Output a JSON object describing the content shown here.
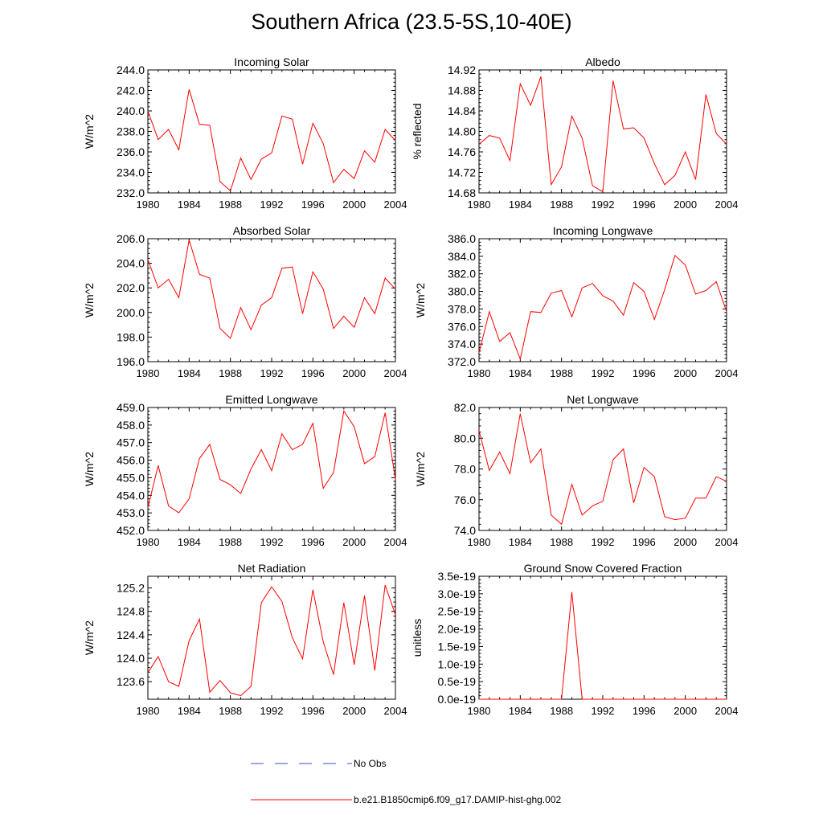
{
  "title": "Southern Africa (23.5-5S,10-40E)",
  "colors": {
    "model": "#ff0000",
    "obs": "#3a4fd0",
    "axis": "#000000"
  },
  "legend": {
    "obs_label": "No Obs",
    "model_label": "b.e21.B1850cmip6.f09_g17.DAMIP-hist-ghg.002"
  },
  "chart_data": [
    {
      "type": "line",
      "title": "Incoming Solar",
      "xlabel": "",
      "ylabel": "W/m^2",
      "x": [
        1980,
        1981,
        1982,
        1983,
        1984,
        1985,
        1986,
        1987,
        1988,
        1989,
        1990,
        1991,
        1992,
        1993,
        1994,
        1995,
        1996,
        1997,
        1998,
        1999,
        2000,
        2001,
        2002,
        2003,
        2004
      ],
      "xlim": [
        1980,
        2004
      ],
      "xticks": [
        "1980",
        "1984",
        "1988",
        "1992",
        "1996",
        "2000",
        "2004"
      ],
      "ylim": [
        232.0,
        244.0
      ],
      "yticks": [
        "232.0",
        "234.0",
        "236.0",
        "238.0",
        "240.0",
        "242.0",
        "244.0"
      ],
      "series": [
        {
          "values": [
            240.0,
            237.2,
            238.2,
            236.2,
            242.1,
            238.7,
            238.6,
            233.1,
            232.2,
            235.4,
            233.3,
            235.3,
            235.9,
            239.5,
            239.2,
            234.8,
            238.8,
            236.8,
            233.0,
            234.3,
            233.4,
            236.1,
            235.0,
            238.2,
            237.1
          ]
        }
      ]
    },
    {
      "type": "line",
      "title": "Albedo",
      "xlabel": "",
      "ylabel": "% reflected",
      "x": [
        1980,
        1981,
        1982,
        1983,
        1984,
        1985,
        1986,
        1987,
        1988,
        1989,
        1990,
        1991,
        1992,
        1993,
        1994,
        1995,
        1996,
        1997,
        1998,
        1999,
        2000,
        2001,
        2002,
        2003,
        2004
      ],
      "xlim": [
        1980,
        2004
      ],
      "xticks": [
        "1980",
        "1984",
        "1988",
        "1992",
        "1996",
        "2000",
        "2004"
      ],
      "ylim": [
        14.68,
        14.92
      ],
      "yticks": [
        "14.68",
        "14.72",
        "14.76",
        "14.80",
        "14.84",
        "14.88",
        "14.92"
      ],
      "series": [
        {
          "values": [
            14.775,
            14.792,
            14.787,
            14.743,
            14.893,
            14.851,
            14.907,
            14.696,
            14.731,
            14.83,
            14.787,
            14.694,
            14.682,
            14.899,
            14.805,
            14.807,
            14.787,
            14.737,
            14.696,
            14.714,
            14.76,
            14.706,
            14.872,
            14.796,
            14.775
          ]
        }
      ]
    },
    {
      "type": "line",
      "title": "Absorbed Solar",
      "xlabel": "",
      "ylabel": "W/m^2",
      "x": [
        1980,
        1981,
        1982,
        1983,
        1984,
        1985,
        1986,
        1987,
        1988,
        1989,
        1990,
        1991,
        1992,
        1993,
        1994,
        1995,
        1996,
        1997,
        1998,
        1999,
        2000,
        2001,
        2002,
        2003,
        2004
      ],
      "xlim": [
        1980,
        2004
      ],
      "xticks": [
        "1980",
        "1984",
        "1988",
        "1992",
        "1996",
        "2000",
        "2004"
      ],
      "ylim": [
        196.0,
        206.0
      ],
      "yticks": [
        "196.0",
        "198.0",
        "200.0",
        "202.0",
        "204.0",
        "206.0"
      ],
      "series": [
        {
          "values": [
            204.3,
            202.0,
            202.7,
            201.2,
            205.9,
            203.1,
            202.8,
            198.7,
            197.9,
            200.4,
            198.6,
            200.6,
            201.2,
            203.6,
            203.7,
            199.9,
            203.3,
            201.9,
            198.7,
            199.7,
            198.8,
            201.2,
            199.9,
            202.8,
            201.9
          ]
        }
      ]
    },
    {
      "type": "line",
      "title": "Incoming Longwave",
      "xlabel": "",
      "ylabel": "W/m^2",
      "x": [
        1980,
        1981,
        1982,
        1983,
        1984,
        1985,
        1986,
        1987,
        1988,
        1989,
        1990,
        1991,
        1992,
        1993,
        1994,
        1995,
        1996,
        1997,
        1998,
        1999,
        2000,
        2001,
        2002,
        2003,
        2004
      ],
      "xlim": [
        1980,
        2004
      ],
      "xticks": [
        "1980",
        "1984",
        "1988",
        "1992",
        "1996",
        "2000",
        "2004"
      ],
      "ylim": [
        372.0,
        386.0
      ],
      "yticks": [
        "372.0",
        "374.0",
        "376.0",
        "378.0",
        "380.0",
        "382.0",
        "384.0",
        "386.0"
      ],
      "series": [
        {
          "values": [
            373.0,
            377.7,
            374.3,
            375.3,
            372.3,
            377.7,
            377.6,
            379.8,
            380.1,
            377.1,
            380.4,
            380.9,
            379.5,
            378.9,
            377.3,
            381.0,
            380.0,
            376.8,
            380.2,
            384.1,
            383.0,
            379.7,
            380.1,
            381.1,
            377.7
          ]
        }
      ]
    },
    {
      "type": "line",
      "title": "Emitted Longwave",
      "xlabel": "",
      "ylabel": "W/m^2",
      "x": [
        1980,
        1981,
        1982,
        1983,
        1984,
        1985,
        1986,
        1987,
        1988,
        1989,
        1990,
        1991,
        1992,
        1993,
        1994,
        1995,
        1996,
        1997,
        1998,
        1999,
        2000,
        2001,
        2002,
        2003,
        2004
      ],
      "xlim": [
        1980,
        2004
      ],
      "xticks": [
        "1980",
        "1984",
        "1988",
        "1992",
        "1996",
        "2000",
        "2004"
      ],
      "ylim": [
        452.0,
        459.0
      ],
      "yticks": [
        "452.0",
        "453.0",
        "454.0",
        "455.0",
        "456.0",
        "457.0",
        "458.0",
        "459.0"
      ],
      "series": [
        {
          "values": [
            453.3,
            455.7,
            453.4,
            453.0,
            453.8,
            456.1,
            456.9,
            454.9,
            454.6,
            454.1,
            455.5,
            456.6,
            455.4,
            457.5,
            456.6,
            456.9,
            458.1,
            454.4,
            455.3,
            458.8,
            457.9,
            455.8,
            456.2,
            458.7,
            454.9
          ]
        }
      ]
    },
    {
      "type": "line",
      "title": "Net Longwave",
      "xlabel": "",
      "ylabel": "W/m^2",
      "x": [
        1980,
        1981,
        1982,
        1983,
        1984,
        1985,
        1986,
        1987,
        1988,
        1989,
        1990,
        1991,
        1992,
        1993,
        1994,
        1995,
        1996,
        1997,
        1998,
        1999,
        2000,
        2001,
        2002,
        2003,
        2004
      ],
      "xlim": [
        1980,
        2004
      ],
      "xticks": [
        "1980",
        "1984",
        "1988",
        "1992",
        "1996",
        "2000",
        "2004"
      ],
      "ylim": [
        74.0,
        82.0
      ],
      "yticks": [
        "74.0",
        "76.0",
        "78.0",
        "80.0",
        "82.0"
      ],
      "series": [
        {
          "values": [
            80.5,
            77.9,
            79.1,
            77.7,
            81.6,
            78.4,
            79.3,
            75.0,
            74.4,
            77.0,
            75.0,
            75.6,
            75.9,
            78.6,
            79.3,
            75.8,
            78.1,
            77.5,
            74.9,
            74.7,
            74.8,
            76.1,
            76.1,
            77.5,
            77.2
          ]
        }
      ]
    },
    {
      "type": "line",
      "title": "Net Radiation",
      "xlabel": "",
      "ylabel": "W/m^2",
      "x": [
        1980,
        1981,
        1982,
        1983,
        1984,
        1985,
        1986,
        1987,
        1988,
        1989,
        1990,
        1991,
        1992,
        1993,
        1994,
        1995,
        1996,
        1997,
        1998,
        1999,
        2000,
        2001,
        2002,
        2003,
        2004
      ],
      "xlim": [
        1980,
        2004
      ],
      "xticks": [
        "1980",
        "1984",
        "1988",
        "1992",
        "1996",
        "2000",
        "2004"
      ],
      "ylim": [
        123.3,
        125.4
      ],
      "yticks": [
        "123.6",
        "124.0",
        "124.4",
        "124.8",
        "125.2"
      ],
      "series": [
        {
          "values": [
            123.75,
            124.03,
            123.6,
            123.52,
            124.3,
            124.67,
            123.42,
            123.62,
            123.41,
            123.36,
            123.52,
            124.95,
            125.22,
            124.97,
            124.35,
            123.99,
            125.17,
            124.28,
            123.72,
            124.95,
            123.89,
            125.07,
            123.79,
            125.25,
            124.74
          ]
        }
      ]
    },
    {
      "type": "line",
      "title": "Ground Snow Covered Fraction",
      "xlabel": "",
      "ylabel": "unitless",
      "x": [
        1980,
        1981,
        1982,
        1983,
        1984,
        1985,
        1986,
        1987,
        1988,
        1989,
        1990,
        1991,
        1992,
        1993,
        1994,
        1995,
        1996,
        1997,
        1998,
        1999,
        2000,
        2001,
        2002,
        2003,
        2004
      ],
      "xlim": [
        1980,
        2004
      ],
      "xticks": [
        "1980",
        "1984",
        "1988",
        "1992",
        "1996",
        "2000",
        "2004"
      ],
      "ylim": [
        0,
        3.5e-19
      ],
      "yticks": [
        "0.0e-19",
        "0.5e-19",
        "1.0e-19",
        "1.5e-19",
        "2.0e-19",
        "2.5e-19",
        "3.0e-19",
        "3.5e-19"
      ],
      "series": [
        {
          "values": [
            0,
            0,
            0,
            0,
            0,
            0,
            0,
            0,
            0,
            3.05e-19,
            0,
            0,
            0,
            0,
            0,
            0,
            0,
            0,
            0,
            0,
            0,
            0,
            0,
            0,
            0
          ]
        }
      ]
    }
  ]
}
